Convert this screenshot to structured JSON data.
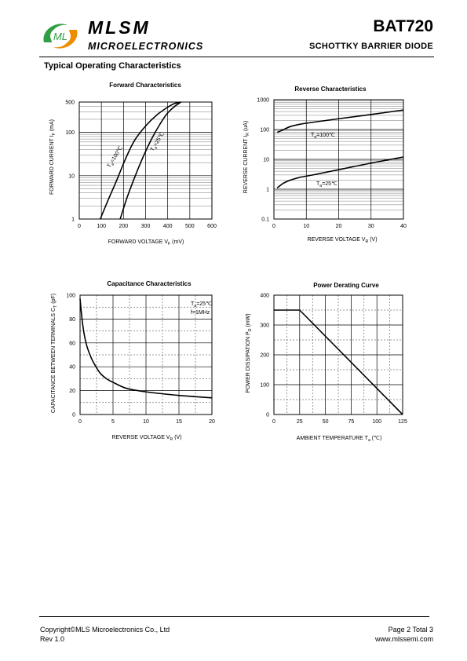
{
  "header": {
    "brand": "MLSM",
    "brand_sub": "MICROELECTRONICS",
    "part_number": "BAT720",
    "part_description": "SCHOTTKY BARRIER  DIODE",
    "logo_letters": "ML"
  },
  "section_title": "Typical Operating Characteristics",
  "footer": {
    "copyright": "Copyright©MLS Microelectronics Co., Ltd",
    "revision": "Rev 1.0",
    "page": "Page 2 Total 3",
    "website": "www.mlssemi.com"
  },
  "colors": {
    "logo_green": "#2f9e44",
    "logo_orange": "#f08c00",
    "ink": "#000000"
  },
  "chart_data": [
    {
      "id": "forward",
      "type": "line",
      "title": "Forward  Characteristics",
      "xlabel": "FORWARD VOLTAGE",
      "xlabel_sym": "V",
      "xlabel_sub": "F",
      "xlabel_unit": "(mV)",
      "ylabel": "FORWARD CURRENT",
      "ylabel_sym": "I",
      "ylabel_sub": "F",
      "ylabel_unit": "(mA)",
      "xlim": [
        0,
        600
      ],
      "ylim": [
        1,
        500
      ],
      "yscale": "log",
      "xticks": [
        0,
        100,
        200,
        300,
        400,
        500,
        600
      ],
      "yticks": [
        1,
        10,
        100,
        500
      ],
      "ytick_labels": [
        "1",
        "10",
        "100",
        "500"
      ],
      "series": [
        {
          "name": "Ta=100℃",
          "label_main": "T",
          "label_sub": "a",
          "label_rest": "=100℃",
          "x": [
            95,
            130,
            170,
            210,
            250,
            300,
            350,
            400,
            430,
            460
          ],
          "y": [
            1,
            2.7,
            8,
            25,
            65,
            140,
            250,
            380,
            460,
            500
          ]
        },
        {
          "name": "Ta=25℃",
          "label_main": "T",
          "label_sub": "a",
          "label_rest": "=25℃",
          "x": [
            185,
            215,
            250,
            290,
            330,
            370,
            400,
            430,
            460
          ],
          "y": [
            1,
            3,
            9,
            28,
            75,
            170,
            280,
            390,
            500
          ]
        }
      ]
    },
    {
      "id": "reverse",
      "type": "line",
      "title": "Reverse  Characteristics",
      "xlabel": "REVERSE VOLTAGE",
      "xlabel_sym": "V",
      "xlabel_sub": "R",
      "xlabel_unit": "(V)",
      "ylabel": "REVERSE CURRENT",
      "ylabel_sym": "I",
      "ylabel_sub": "R",
      "ylabel_unit": "(uA)",
      "xlim": [
        0,
        40
      ],
      "ylim": [
        0.1,
        1000
      ],
      "yscale": "log",
      "xticks": [
        0,
        10,
        20,
        30,
        40
      ],
      "yticks": [
        0.1,
        1,
        10,
        100,
        1000
      ],
      "ytick_labels": [
        "0.1",
        "1",
        "10",
        "100",
        "1000"
      ],
      "series": [
        {
          "name": "Ta=100℃",
          "label_main": "T",
          "label_sub": "a",
          "label_rest": "=100℃",
          "x": [
            1,
            3,
            5,
            8,
            12,
            20,
            30,
            40
          ],
          "y": [
            80,
            100,
            125,
            150,
            175,
            230,
            320,
            450
          ]
        },
        {
          "name": "Ta=25℃",
          "label_main": "T",
          "label_sub": "a",
          "label_rest": "=25℃",
          "x": [
            1,
            3,
            5,
            8,
            12,
            20,
            30,
            40
          ],
          "y": [
            1.1,
            1.6,
            2.0,
            2.5,
            3.0,
            4.5,
            7.5,
            12
          ]
        }
      ]
    },
    {
      "id": "capacitance",
      "type": "line",
      "title": "Capacitance Characteristics",
      "xlabel": "REVERSE VOLTAGE",
      "xlabel_sym": "V",
      "xlabel_sub": "R",
      "xlabel_unit": "(V)",
      "ylabel": "CAPACITANCE BETWEEN TERMINALS",
      "ylabel_sym": "C",
      "ylabel_sub": "T",
      "ylabel_unit": "(pF)",
      "xlim": [
        0,
        20
      ],
      "ylim": [
        0,
        100
      ],
      "yscale": "linear",
      "xticks": [
        0,
        5,
        10,
        15,
        20
      ],
      "yticks": [
        0,
        20,
        40,
        60,
        80,
        100
      ],
      "ytick_labels": [
        "0",
        "20",
        "40",
        "60",
        "80",
        "100"
      ],
      "annotation": {
        "line1_main": "T",
        "line1_sub": "a",
        "line1_rest": "=25℃",
        "line2": "f=1MHz"
      },
      "series": [
        {
          "name": "",
          "x": [
            0,
            0.3,
            0.6,
            1,
            1.5,
            2,
            3,
            4,
            5,
            7,
            10,
            15,
            20
          ],
          "y": [
            97,
            80,
            68,
            58,
            50,
            44,
            35,
            30,
            27,
            22,
            19,
            16,
            14
          ]
        }
      ]
    },
    {
      "id": "derating",
      "type": "line",
      "title": "Power Derating Curve",
      "xlabel": "AMBIENT TEMPERATURE",
      "xlabel_sym": "T",
      "xlabel_sub": "a",
      "xlabel_unit": "(℃)",
      "ylabel": "POWER  DISSIPATION",
      "ylabel_sym": "P",
      "ylabel_sub": "D",
      "ylabel_unit": "(mW)",
      "xlim": [
        0,
        125
      ],
      "ylim": [
        0,
        400
      ],
      "yscale": "linear",
      "xticks": [
        0,
        25,
        50,
        75,
        100,
        125
      ],
      "yticks": [
        0,
        100,
        200,
        300,
        400
      ],
      "ytick_labels": [
        "0",
        "100",
        "200",
        "300",
        "400"
      ],
      "series": [
        {
          "name": "",
          "x": [
            0,
            25,
            125
          ],
          "y": [
            350,
            350,
            0
          ]
        }
      ]
    }
  ]
}
